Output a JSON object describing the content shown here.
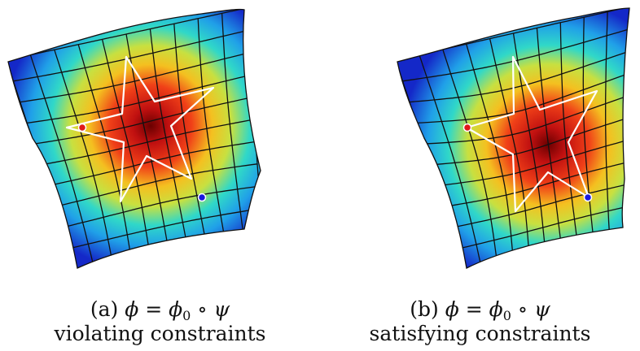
{
  "colors": {
    "heat_low": "#1428c8",
    "heat_mid": "#22c8e8",
    "heat_warm": "#f0e020",
    "heat_high": "#e02010",
    "heat_core": "#6a0000",
    "grid_line": "#111111",
    "star_outline": "#ffffff",
    "source_point": "#e01818",
    "target_point": "#1818e0"
  },
  "panels": [
    {
      "label": "(a)",
      "formula": {
        "lhs": "ϕ",
        "eq": "=",
        "base": "ϕ",
        "sub": "0",
        "op": "∘",
        "rhs": "ψ"
      },
      "description": "violating constraints"
    },
    {
      "label": "(b)",
      "formula": {
        "lhs": "ϕ",
        "eq": "=",
        "base": "ϕ",
        "sub": "0",
        "op": "∘",
        "rhs": "ψ"
      },
      "description": "satisfying constraints"
    }
  ]
}
